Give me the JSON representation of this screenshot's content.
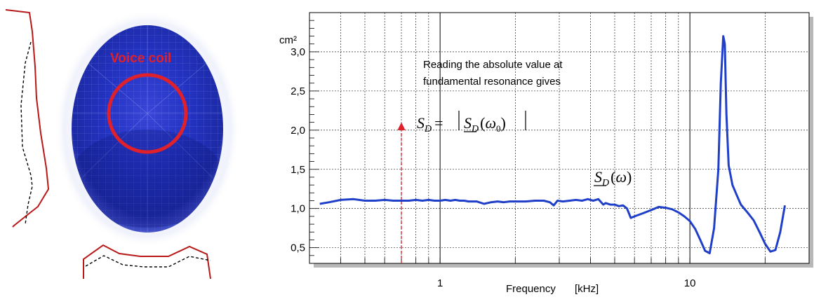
{
  "figure": {
    "voice_coil_label": "Voice coil"
  },
  "chart_data": {
    "type": "line",
    "x_scale": "log",
    "xlim": [
      0.3,
      30
    ],
    "ylim": [
      0.3,
      3.5
    ],
    "xlabel": "Frequency",
    "xunit": "[kHz]",
    "yunit": "cm²",
    "x_tick_labels": [
      {
        "value": 1,
        "label": "1"
      },
      {
        "value": 10,
        "label": "10"
      }
    ],
    "y_tick_labels": [
      {
        "value": 0.5,
        "label": "0,5"
      },
      {
        "value": 1.0,
        "label": "1,0"
      },
      {
        "value": 1.5,
        "label": "1,5"
      },
      {
        "value": 2.0,
        "label": "2,0"
      },
      {
        "value": 2.5,
        "label": "2,5"
      },
      {
        "value": 3.0,
        "label": "3,0"
      }
    ],
    "grid": true,
    "annotation_text": [
      "Reading the absolute value at",
      "fundamental resonance gives"
    ],
    "annotation_formula": "S_D = |S_D(ω_0)|",
    "curve_label": "S_D(ω)",
    "resonance_marker_x": 0.7,
    "series": [
      {
        "color": "#1f3fc8",
        "x": [
          0.33,
          0.36,
          0.4,
          0.45,
          0.5,
          0.55,
          0.6,
          0.65,
          0.7,
          0.75,
          0.8,
          0.85,
          0.9,
          0.95,
          1.0,
          1.05,
          1.1,
          1.15,
          1.2,
          1.25,
          1.3,
          1.4,
          1.5,
          1.6,
          1.7,
          1.8,
          1.9,
          2.0,
          2.2,
          2.4,
          2.6,
          2.75,
          2.85,
          2.95,
          3.1,
          3.3,
          3.5,
          3.7,
          3.9,
          4.1,
          4.3,
          4.5,
          4.6,
          4.8,
          5.0,
          5.2,
          5.4,
          5.6,
          5.8,
          6.0,
          6.5,
          7.0,
          7.5,
          8.0,
          8.5,
          9.0,
          9.5,
          10.0,
          10.5,
          11.0,
          11.5,
          12.0,
          12.5,
          13.0,
          13.3,
          13.6,
          13.8,
          14.0,
          14.3,
          14.8,
          15.5,
          16.0,
          17.0,
          18.0,
          19.0,
          20.0,
          21.0,
          22.0,
          23.0,
          24.0
        ],
        "y": [
          1.06,
          1.08,
          1.11,
          1.12,
          1.1,
          1.1,
          1.11,
          1.1,
          1.1,
          1.1,
          1.11,
          1.1,
          1.11,
          1.1,
          1.1,
          1.11,
          1.1,
          1.11,
          1.1,
          1.1,
          1.09,
          1.09,
          1.06,
          1.08,
          1.09,
          1.08,
          1.09,
          1.09,
          1.09,
          1.1,
          1.1,
          1.08,
          1.04,
          1.1,
          1.09,
          1.1,
          1.11,
          1.1,
          1.12,
          1.1,
          1.12,
          1.05,
          1.07,
          1.05,
          1.05,
          1.03,
          1.04,
          1.0,
          0.88,
          0.9,
          0.94,
          0.98,
          1.02,
          1.01,
          0.99,
          0.95,
          0.9,
          0.84,
          0.74,
          0.6,
          0.46,
          0.43,
          0.75,
          1.5,
          2.6,
          3.2,
          3.1,
          2.2,
          1.55,
          1.3,
          1.15,
          1.05,
          0.95,
          0.85,
          0.7,
          0.55,
          0.45,
          0.47,
          0.7,
          1.04
        ]
      }
    ]
  }
}
